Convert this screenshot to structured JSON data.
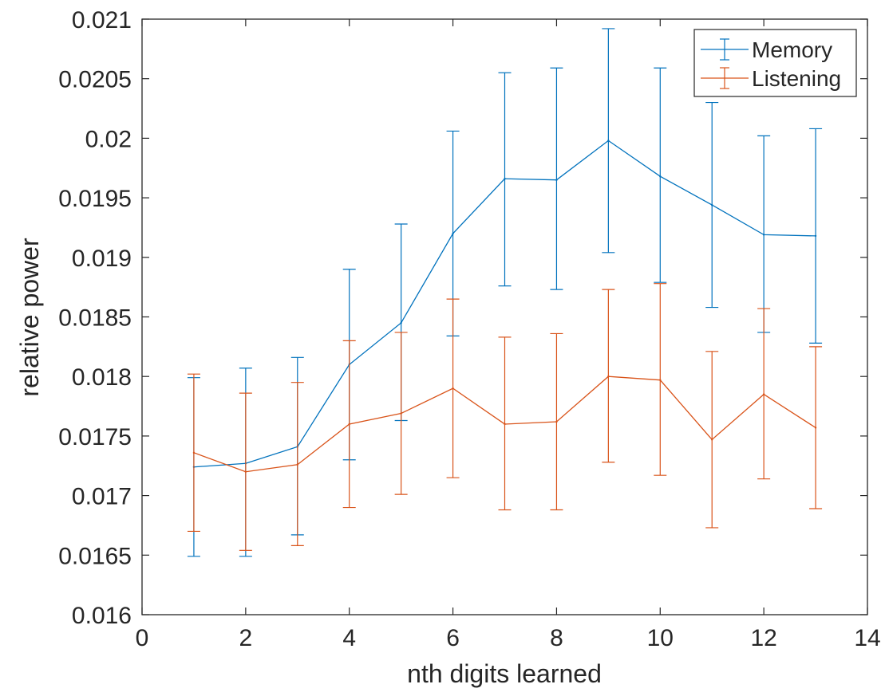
{
  "chart_data": {
    "type": "line",
    "title": "",
    "xlabel": "nth digits learned",
    "ylabel": "relative power",
    "xlim": [
      0,
      14
    ],
    "ylim": [
      0.016,
      0.021
    ],
    "xticks": [
      0,
      2,
      4,
      6,
      8,
      10,
      12,
      14
    ],
    "xtick_labels": [
      "0",
      "2",
      "4",
      "6",
      "8",
      "10",
      "12",
      "14"
    ],
    "yticks": [
      0.016,
      0.0165,
      0.017,
      0.0175,
      0.018,
      0.0185,
      0.019,
      0.0195,
      0.02,
      0.0205,
      0.021
    ],
    "ytick_labels": [
      "0.016",
      "0.0165",
      "0.017",
      "0.0175",
      "0.018",
      "0.0185",
      "0.019",
      "0.0195",
      "0.02",
      "0.0205",
      "0.021"
    ],
    "grid": false,
    "legend_position": "top-right",
    "x": [
      1,
      2,
      3,
      4,
      5,
      6,
      7,
      8,
      9,
      10,
      11,
      12,
      13
    ],
    "series": [
      {
        "name": "Memory",
        "color": "#0072BD",
        "values": [
          0.01724,
          0.01727,
          0.01741,
          0.0181,
          0.01845,
          0.0192,
          0.01966,
          0.01965,
          0.01998,
          0.01968,
          0.01944,
          0.01919,
          0.01918
        ],
        "err_low": [
          0.01649,
          0.01649,
          0.01667,
          0.0173,
          0.01763,
          0.01834,
          0.01876,
          0.01873,
          0.01904,
          0.01879,
          0.01858,
          0.01837,
          0.01828
        ],
        "err_high": [
          0.01799,
          0.01807,
          0.01816,
          0.0189,
          0.01928,
          0.02006,
          0.02055,
          0.02059,
          0.02092,
          0.02059,
          0.0203,
          0.02002,
          0.02008
        ]
      },
      {
        "name": "Listening",
        "color": "#D95319",
        "values": [
          0.01736,
          0.0172,
          0.01726,
          0.0176,
          0.01769,
          0.0179,
          0.0176,
          0.01762,
          0.018,
          0.01797,
          0.01747,
          0.01785,
          0.01757
        ],
        "err_low": [
          0.0167,
          0.01654,
          0.01658,
          0.0169,
          0.01701,
          0.01715,
          0.01688,
          0.01688,
          0.01728,
          0.01717,
          0.01673,
          0.01714,
          0.01689
        ],
        "err_high": [
          0.01802,
          0.01786,
          0.01795,
          0.0183,
          0.01837,
          0.01865,
          0.01833,
          0.01836,
          0.01873,
          0.01878,
          0.01821,
          0.01857,
          0.01825
        ]
      }
    ]
  }
}
